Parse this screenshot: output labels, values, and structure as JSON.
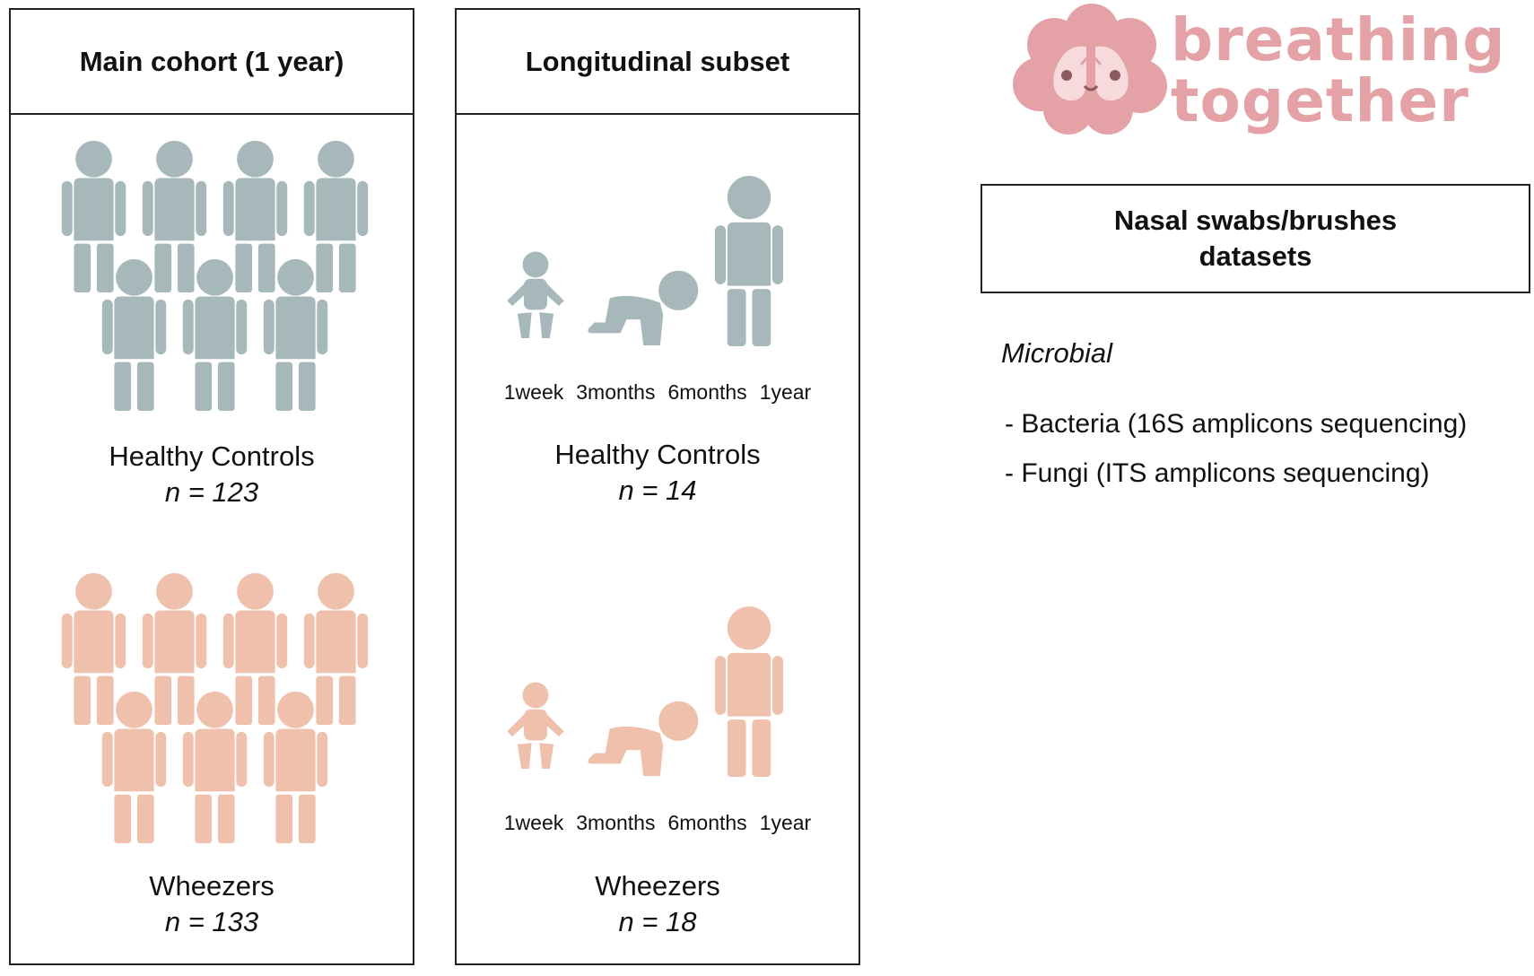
{
  "colors": {
    "healthy": "#a7b8ba",
    "wheezer": "#efc0ac",
    "logo_pink": "#e4a2a7",
    "logo_light": "#f6dadc",
    "border": "#222222"
  },
  "main_cohort": {
    "title": "Main cohort (1 year)",
    "groups": [
      {
        "label": "Healthy Controls",
        "n": "n = 123"
      },
      {
        "label": "Wheezers",
        "n": "n = 133"
      }
    ]
  },
  "longitudinal": {
    "title": "Longitudinal subset",
    "stages": [
      "1week",
      "3months",
      "6months",
      "1year"
    ],
    "groups": [
      {
        "label": "Healthy Controls",
        "n": "n = 14"
      },
      {
        "label": "Wheezers",
        "n": "n = 18"
      }
    ]
  },
  "logo": {
    "line1": "breathing",
    "line2": "together"
  },
  "datasets": {
    "title_line1": "Nasal swabs/brushes",
    "title_line2": "datasets",
    "category": "Microbial",
    "items": [
      "- Bacteria (16S amplicons sequencing)",
      "- Fungi (ITS amplicons sequencing)"
    ]
  }
}
